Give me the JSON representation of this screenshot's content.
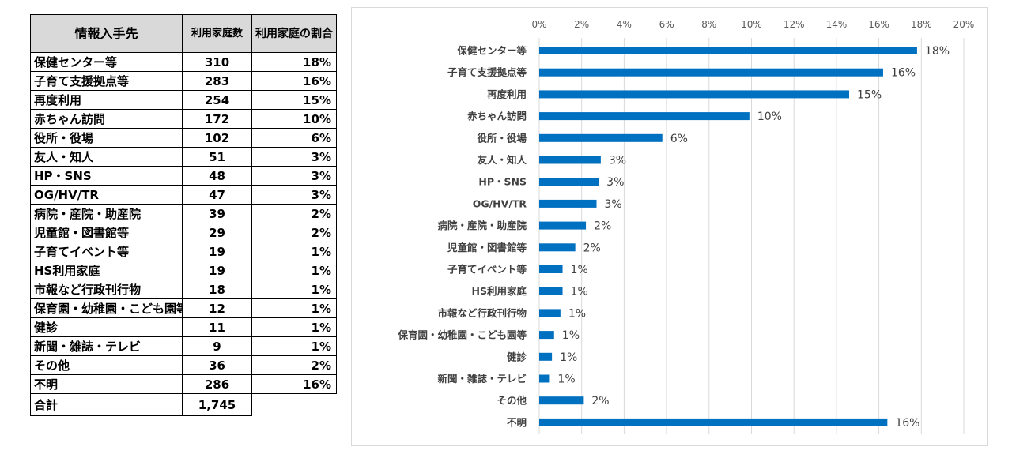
{
  "table": {
    "headers": {
      "name": "情報入手先",
      "count": "利用家庭数",
      "rate": "利用家庭の割合"
    },
    "rows": [
      {
        "name": "保健センター等",
        "count": "310",
        "rate": "18%"
      },
      {
        "name": "子育て支援拠点等",
        "count": "283",
        "rate": "16%"
      },
      {
        "name": "再度利用",
        "count": "254",
        "rate": "15%"
      },
      {
        "name": "赤ちゃん訪問",
        "count": "172",
        "rate": "10%"
      },
      {
        "name": "役所・役場",
        "count": "102",
        "rate": "6%"
      },
      {
        "name": "友人・知人",
        "count": "51",
        "rate": "3%"
      },
      {
        "name": "HP・SNS",
        "count": "48",
        "rate": "3%"
      },
      {
        "name": "OG/HV/TR",
        "count": "47",
        "rate": "3%"
      },
      {
        "name": "病院・産院・助産院",
        "count": "39",
        "rate": "2%"
      },
      {
        "name": "児童館・図書館等",
        "count": "29",
        "rate": "2%"
      },
      {
        "name": "子育てイベント等",
        "count": "19",
        "rate": "1%"
      },
      {
        "name": "HS利用家庭",
        "count": "19",
        "rate": "1%"
      },
      {
        "name": "市報など行政刊行物",
        "count": "18",
        "rate": "1%"
      },
      {
        "name": "保育園・幼稚園・こども園等",
        "count": "12",
        "rate": "1%"
      },
      {
        "name": "健診",
        "count": "11",
        "rate": "1%"
      },
      {
        "name": "新聞・雑誌・テレビ",
        "count": "9",
        "rate": "1%"
      },
      {
        "name": "その他",
        "count": "36",
        "rate": "2%"
      },
      {
        "name": "不明",
        "count": "286",
        "rate": "16%"
      }
    ],
    "total": {
      "name": "合計",
      "count": "1,745"
    }
  },
  "chart_data": {
    "type": "bar",
    "orientation": "horizontal",
    "categories": [
      "保健センター等",
      "子育て支援拠点等",
      "再度利用",
      "赤ちゃん訪問",
      "役所・役場",
      "友人・知人",
      "HP・SNS",
      "OG/HV/TR",
      "病院・産院・助産院",
      "児童館・図書館等",
      "子育てイベント等",
      "HS利用家庭",
      "市報など行政刊行物",
      "保育園・幼稚園・こども園等",
      "健診",
      "新聞・雑誌・テレビ",
      "その他",
      "不明"
    ],
    "values": [
      17.8,
      16.2,
      14.6,
      9.9,
      5.8,
      2.9,
      2.8,
      2.7,
      2.2,
      1.7,
      1.1,
      1.1,
      1.0,
      0.7,
      0.6,
      0.5,
      2.1,
      16.4
    ],
    "data_labels": [
      "18%",
      "16%",
      "15%",
      "10%",
      "6%",
      "3%",
      "3%",
      "3%",
      "2%",
      "2%",
      "1%",
      "1%",
      "1%",
      "1%",
      "1%",
      "1%",
      "2%",
      "16%"
    ],
    "xlim": [
      0,
      20
    ],
    "x_ticks": [
      "0%",
      "2%",
      "4%",
      "6%",
      "8%",
      "10%",
      "12%",
      "14%",
      "16%",
      "18%",
      "20%"
    ],
    "axis_position": "top",
    "grid": true,
    "bar_color": "#0070c0",
    "title": "",
    "xlabel": "",
    "ylabel": ""
  }
}
